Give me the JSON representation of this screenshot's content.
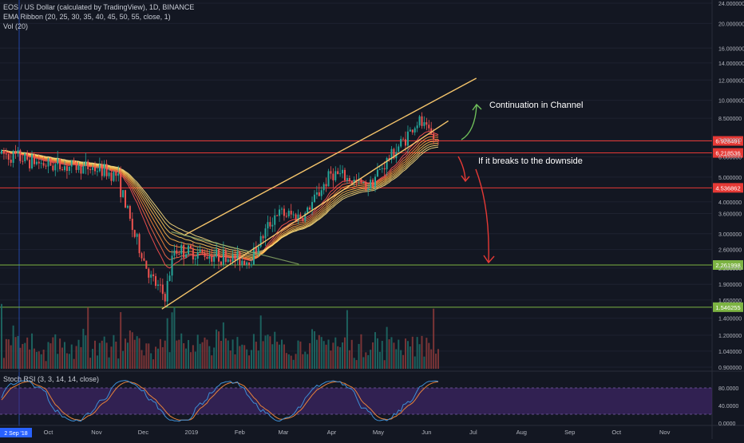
{
  "header": {
    "title": "EOS / US Dollar (calculated by TradingView), 1D, BINANCE",
    "ema_label": "EMA Ribbon (20, 25, 30, 35, 40, 45, 50, 55, close, 1)",
    "vol_label": "Vol (20)"
  },
  "rsi_panel": {
    "title": "Stoch RSI (3, 3, 14, 14, close)"
  },
  "annotations": {
    "continuation": "Continuation in Channel",
    "breakdown": "If it breaks to the downside"
  },
  "colors": {
    "background": "#131722",
    "candle_up": "#26a69a",
    "candle_down": "#ef5350",
    "channel": "#f5c56b",
    "red_level": "#e53935",
    "green_level": "#7cb342",
    "rsi_fill": "#4a2a7a",
    "stoch_k": "#3d8fd6",
    "stoch_d": "#e8833a"
  },
  "chart_data": [
    {
      "type": "candlestick",
      "price_scale": "log",
      "y_ticks": [
        "24.000000",
        "20.000000",
        "16.000000",
        "14.000000",
        "12.000000",
        "10.000000",
        "8.500000",
        "7.000000",
        "6.000000",
        "5.000000",
        "4.000000",
        "3.600000",
        "3.000000",
        "2.600000",
        "2.200000",
        "1.900000",
        "1.650000",
        "1.400000",
        "1.200000",
        "1.040000",
        "0.900000"
      ],
      "y_tick_values": [
        24,
        20,
        16,
        14,
        12,
        10,
        8.5,
        7,
        6,
        5,
        4,
        3.6,
        3,
        2.6,
        2.2,
        1.9,
        1.65,
        1.4,
        1.2,
        1.04,
        0.9
      ],
      "x_ticks": [
        "Sep",
        "Oct",
        "Nov",
        "Dec",
        "2019",
        "Feb",
        "Mar",
        "Apr",
        "May",
        "Jun",
        "Jul",
        "Aug",
        "Sep",
        "Oct",
        "Nov"
      ],
      "current_date_label": "2 Sep '18",
      "horizontal_levels": [
        {
          "value": 6.928491,
          "label": "6.928491",
          "color": "red"
        },
        {
          "value": 6.218536,
          "label": "6.218536",
          "color": "red"
        },
        {
          "value": 4.536862,
          "label": "4.536862",
          "color": "red"
        },
        {
          "value": 2.261998,
          "label": "2.261998",
          "color": "green"
        },
        {
          "value": 1.546255,
          "label": "1.546255",
          "color": "green"
        }
      ],
      "price_path_keypoints": [
        {
          "date": "2018-09-01",
          "close": 6.2
        },
        {
          "date": "2018-10-01",
          "close": 5.6
        },
        {
          "date": "2018-11-01",
          "close": 5.4
        },
        {
          "date": "2018-11-15",
          "close": 5.1
        },
        {
          "date": "2018-11-26",
          "close": 3.0
        },
        {
          "date": "2018-12-07",
          "close": 2.0
        },
        {
          "date": "2018-12-16",
          "close": 1.7
        },
        {
          "date": "2018-12-22",
          "close": 2.6
        },
        {
          "date": "2019-01-10",
          "close": 2.5
        },
        {
          "date": "2019-02-08",
          "close": 2.35
        },
        {
          "date": "2019-02-25",
          "close": 3.6
        },
        {
          "date": "2019-03-15",
          "close": 3.5
        },
        {
          "date": "2019-04-02",
          "close": 5.2
        },
        {
          "date": "2019-04-25",
          "close": 4.6
        },
        {
          "date": "2019-05-15",
          "close": 6.6
        },
        {
          "date": "2019-05-28",
          "close": 8.3
        },
        {
          "date": "2019-06-08",
          "close": 6.9
        }
      ],
      "channel_lines": [
        {
          "from": {
            "date": "2018-12-14",
            "price": 1.52
          },
          "to": {
            "date": "2019-06-16",
            "price": 8.3
          }
        },
        {
          "from": {
            "date": "2018-12-28",
            "price": 2.95
          },
          "to": {
            "date": "2019-07-04",
            "price": 12.2
          }
        }
      ]
    },
    {
      "type": "bar",
      "name": "Vol (20)",
      "note": "volume histogram bars colored by candle direction"
    },
    {
      "type": "line",
      "name": "Stoch RSI (3, 3, 14, 14, close)",
      "y_ticks": [
        "80.0000",
        "40.0000",
        "0.0000"
      ],
      "y_tick_values": [
        80,
        40,
        0
      ],
      "band": [
        20,
        80
      ]
    }
  ]
}
